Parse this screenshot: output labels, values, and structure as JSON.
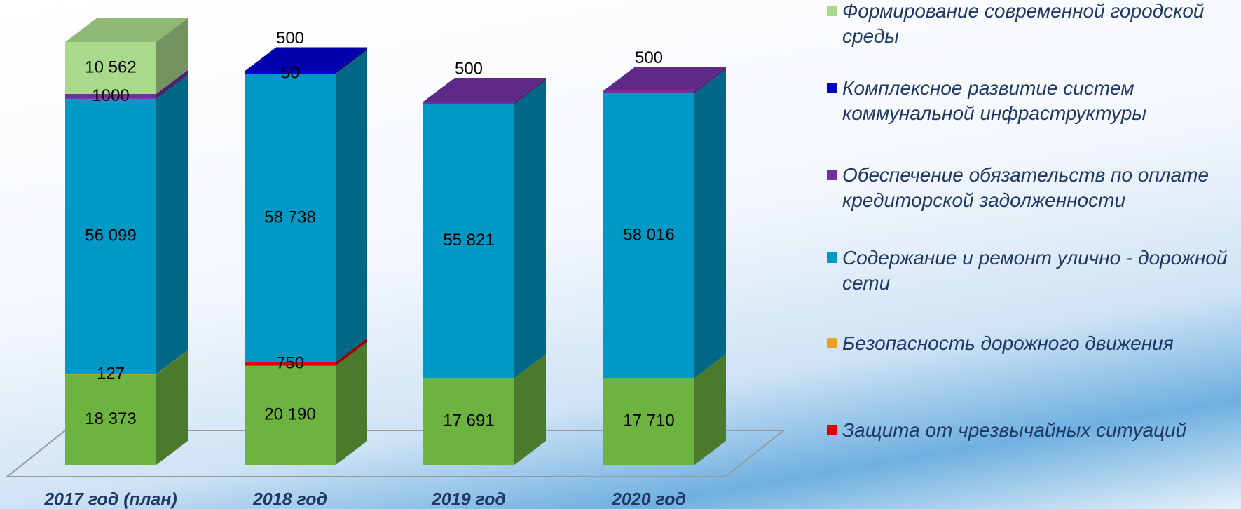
{
  "chart_data": {
    "type": "bar3d-stacked",
    "categories": [
      "2017 год (план)",
      "2018 год",
      "2019 год",
      "2020 год"
    ],
    "series": [
      {
        "color": "#6db33f",
        "values": [
          18373,
          20190,
          17691,
          17710
        ],
        "value_labels": [
          "18 373",
          "20 190",
          "17 691",
          "17 710"
        ]
      },
      {
        "name": "Защита от чрезвычайных ситуаций",
        "color": "#e00000",
        "values": [
          null,
          750,
          null,
          null
        ]
      },
      {
        "name": "Безопасность дорожного движения",
        "color": "#e8a020",
        "values": [
          127,
          null,
          null,
          null
        ]
      },
      {
        "name": "Содержание и ремонт улично - дорожной сети",
        "color": "#0099c6",
        "values": [
          56099,
          58738,
          55821,
          58016
        ],
        "value_labels": [
          "56 099",
          "58 738",
          "55 821",
          "58 016"
        ]
      },
      {
        "name": "Обеспечение обязательств по оплате кредиторской задолженности",
        "color": "#7030a0",
        "values": [
          1000,
          50,
          500,
          500
        ]
      },
      {
        "name": "Комплексное развитие систем коммунальной инфраструктуры",
        "color": "#0000cc",
        "values": [
          null,
          500,
          null,
          null
        ]
      },
      {
        "name": "Формирование современной городской среды",
        "color": "#a9d98a",
        "values": [
          10562,
          null,
          null,
          null
        ],
        "value_labels": [
          "10 562",
          null,
          null,
          null
        ]
      }
    ]
  }
}
